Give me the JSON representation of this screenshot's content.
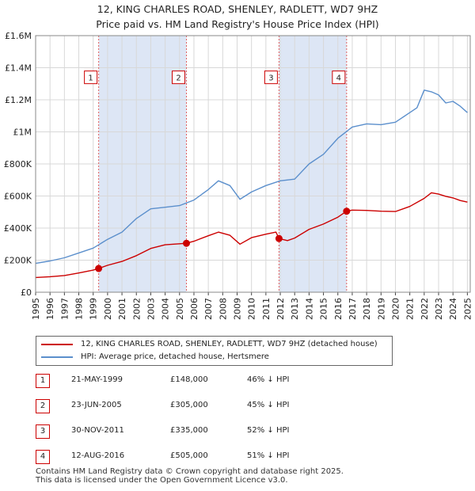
{
  "title_line1": "12, KING CHARLES ROAD, SHENLEY, RADLETT, WD7 9HZ",
  "title_line2": "Price paid vs. HM Land Registry's House Price Index (HPI)",
  "colors": {
    "property": "#cc0000",
    "hpi": "#5b8fcc",
    "shade": "#dde6f5",
    "grid": "#d8d8d8",
    "vline": "#e06060"
  },
  "chart_data": {
    "type": "line",
    "title": "12, KING CHARLES ROAD, SHENLEY, RADLETT, WD7 9HZ — Price paid vs. HM Land Registry's House Price Index (HPI)",
    "xlabel": "",
    "ylabel": "",
    "xlim": [
      1995.0,
      2025.2
    ],
    "ylim": [
      0,
      1600000
    ],
    "y_ticks": [
      {
        "value": 0,
        "label": "£0"
      },
      {
        "value": 200000,
        "label": "£200K"
      },
      {
        "value": 400000,
        "label": "£400K"
      },
      {
        "value": 600000,
        "label": "£600K"
      },
      {
        "value": 800000,
        "label": "£800K"
      },
      {
        "value": 1000000,
        "label": "£1M"
      },
      {
        "value": 1200000,
        "label": "£1.2M"
      },
      {
        "value": 1400000,
        "label": "£1.4M"
      },
      {
        "value": 1600000,
        "label": "£1.6M"
      }
    ],
    "x_ticks": [
      "1995",
      "1996",
      "1997",
      "1998",
      "1999",
      "2000",
      "2001",
      "2002",
      "2003",
      "2004",
      "2005",
      "2006",
      "2007",
      "2008",
      "2009",
      "2010",
      "2011",
      "2012",
      "2013",
      "2014",
      "2015",
      "2016",
      "2017",
      "2018",
      "2019",
      "2020",
      "2021",
      "2022",
      "2023",
      "2024",
      "2025"
    ],
    "shaded_ranges": [
      [
        1999.38,
        2005.48
      ],
      [
        2011.91,
        2016.61
      ]
    ],
    "series": [
      {
        "name": "12, KING CHARLES ROAD, SHENLEY, RADLETT, WD7 9HZ (detached house)",
        "x": [
          1995.0,
          1996.0,
          1997.0,
          1998.0,
          1999.0,
          1999.38,
          2000.0,
          2001.0,
          2002.0,
          2003.0,
          2004.0,
          2005.0,
          2005.48,
          2006.0,
          2007.0,
          2007.7,
          2008.5,
          2009.2,
          2010.0,
          2011.0,
          2011.7,
          2011.91,
          2012.5,
          2013.0,
          2014.0,
          2015.0,
          2016.0,
          2016.61,
          2017.0,
          2018.0,
          2019.0,
          2020.0,
          2021.0,
          2022.0,
          2022.5,
          2023.0,
          2023.5,
          2024.0,
          2024.5,
          2025.0
        ],
        "values": [
          92000,
          97000,
          104000,
          120000,
          138000,
          148000,
          168000,
          192000,
          228000,
          273000,
          296000,
          302000,
          305000,
          318000,
          352000,
          375000,
          355000,
          300000,
          340000,
          362000,
          375000,
          335000,
          322000,
          338000,
          392000,
          425000,
          468000,
          505000,
          512000,
          510000,
          505000,
          503000,
          535000,
          585000,
          620000,
          612000,
          598000,
          588000,
          572000,
          562000
        ]
      },
      {
        "name": "HPI: Average price, detached house, Hertsmere",
        "x": [
          1995.0,
          1996.0,
          1997.0,
          1998.0,
          1999.0,
          2000.0,
          2001.0,
          2002.0,
          2003.0,
          2004.0,
          2005.0,
          2006.0,
          2007.0,
          2007.7,
          2008.5,
          2009.2,
          2010.0,
          2011.0,
          2012.0,
          2013.0,
          2014.0,
          2015.0,
          2016.0,
          2017.0,
          2018.0,
          2019.0,
          2020.0,
          2021.0,
          2021.5,
          2022.0,
          2022.5,
          2023.0,
          2023.5,
          2024.0,
          2024.5,
          2025.0
        ],
        "values": [
          180000,
          195000,
          215000,
          245000,
          275000,
          330000,
          375000,
          460000,
          520000,
          530000,
          540000,
          575000,
          640000,
          695000,
          665000,
          580000,
          625000,
          665000,
          695000,
          705000,
          800000,
          860000,
          960000,
          1030000,
          1050000,
          1045000,
          1060000,
          1120000,
          1150000,
          1260000,
          1250000,
          1230000,
          1180000,
          1190000,
          1160000,
          1120000
        ]
      }
    ],
    "markers": [
      {
        "label": "1",
        "x": 1999.38,
        "value": 148000
      },
      {
        "label": "2",
        "x": 2005.48,
        "value": 305000
      },
      {
        "label": "3",
        "x": 2011.91,
        "value": 335000
      },
      {
        "label": "4",
        "x": 2016.61,
        "value": 505000
      }
    ],
    "marker_box_value": 1340000
  },
  "legend": {
    "property_label": "12, KING CHARLES ROAD, SHENLEY, RADLETT, WD7 9HZ (detached house)",
    "hpi_label": "HPI: Average price, detached house, Hertsmere"
  },
  "transactions": [
    {
      "num": "1",
      "date": "21-MAY-1999",
      "price": "£148,000",
      "hpi": "46% ↓ HPI"
    },
    {
      "num": "2",
      "date": "23-JUN-2005",
      "price": "£305,000",
      "hpi": "45% ↓ HPI"
    },
    {
      "num": "3",
      "date": "30-NOV-2011",
      "price": "£335,000",
      "hpi": "52% ↓ HPI"
    },
    {
      "num": "4",
      "date": "12-AUG-2016",
      "price": "£505,000",
      "hpi": "51% ↓ HPI"
    }
  ],
  "footer": {
    "line1": "Contains HM Land Registry data © Crown copyright and database right 2025.",
    "line2": "This data is licensed under the Open Government Licence v3.0."
  }
}
